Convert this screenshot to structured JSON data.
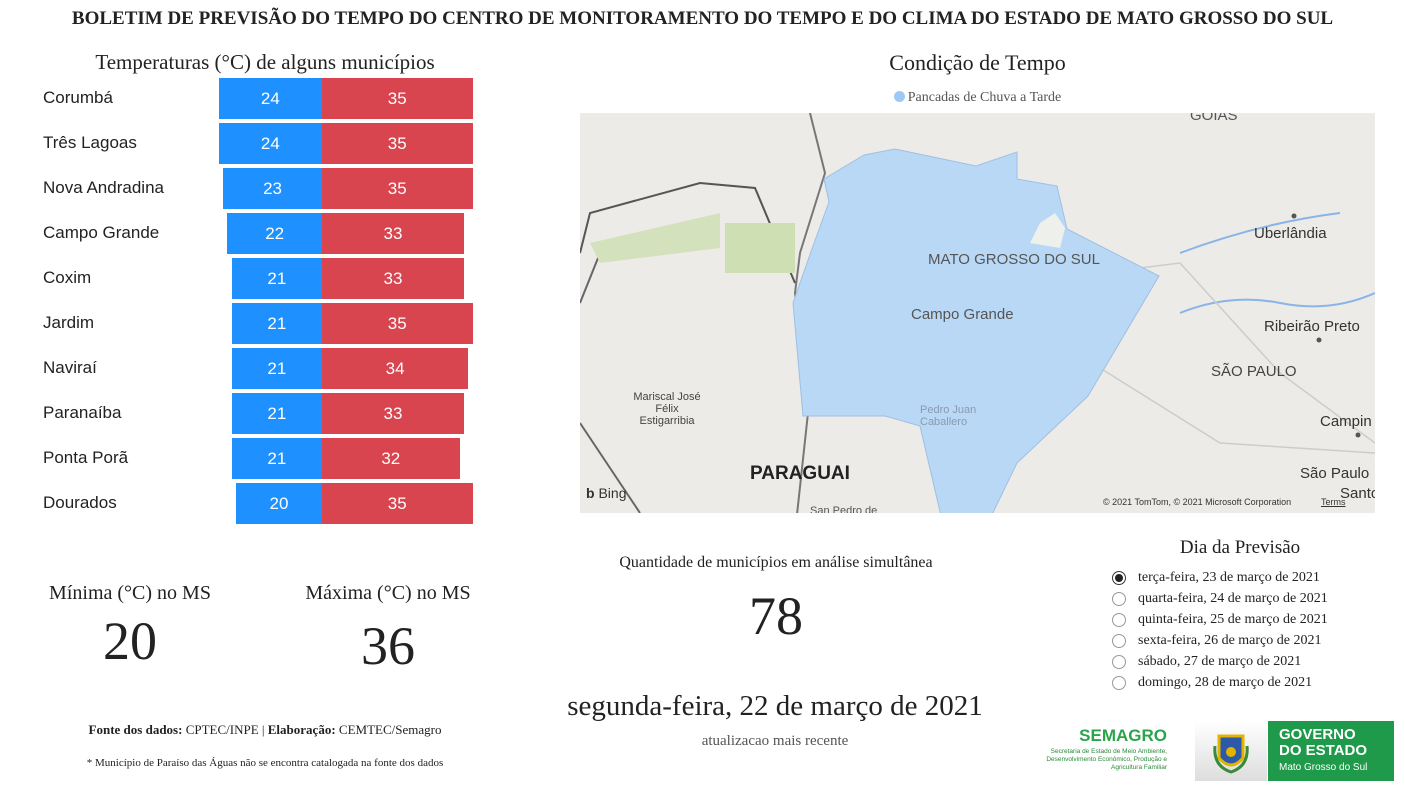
{
  "header": {
    "title": "BOLETIM DE PREVISÃO DO TEMPO DO CENTRO DE MONITORAMENTO DO TEMPO E DO CLIMA DO ESTADO DE MATO GROSSO DO SUL"
  },
  "temperatures": {
    "title": "Temperaturas (°C) de alguns municípios",
    "colors": {
      "min": "#1e90ff",
      "max": "#d9454f"
    },
    "rows": [
      {
        "city": "Corumbá",
        "min": 24,
        "max": 35
      },
      {
        "city": "Três Lagoas",
        "min": 24,
        "max": 35
      },
      {
        "city": "Nova Andradina",
        "min": 23,
        "max": 35
      },
      {
        "city": "Campo Grande",
        "min": 22,
        "max": 33
      },
      {
        "city": "Coxim",
        "min": 21,
        "max": 33
      },
      {
        "city": "Jardim",
        "min": 21,
        "max": 35
      },
      {
        "city": "Naviraí",
        "min": 21,
        "max": 34
      },
      {
        "city": "Paranaíba",
        "min": 21,
        "max": 33
      },
      {
        "city": "Ponta Porã",
        "min": 21,
        "max": 32
      },
      {
        "city": "Dourados",
        "min": 20,
        "max": 35
      }
    ]
  },
  "kpis": {
    "min_label": "Mínima (°C) no MS",
    "min_value": "20",
    "max_label": "Máxima (°C) no MS",
    "max_value": "36",
    "count_label": "Quantidade de municípios em análise simultânea",
    "count_value": "78"
  },
  "condition": {
    "title": "Condição de Tempo",
    "legend": "Pancadas de Chuva a Tarde",
    "legend_color": "#9fc9f5",
    "map_labels": {
      "goias": "GOIÁS",
      "ms": "MATO GROSSO DO SUL",
      "campo_grande": "Campo Grande",
      "uberlandia": "Uberlândia",
      "ribeirao": "Ribeirão Preto",
      "sp": "SÃO PAULO",
      "campinas": "Campin",
      "sao_paulo": "São Paulo",
      "santos": "Santo",
      "mariscal": "Mariscal José Félix Estigarribia",
      "pedro": "Pedro Juan Caballero",
      "paraguai": "PARAGUAI",
      "san_pedro": "San Pedro de",
      "bing": "Bing",
      "copyright": "© 2021 TomTom, © 2021 Microsoft Corporation",
      "terms": "Terms"
    }
  },
  "forecast": {
    "title": "Dia da Previsão",
    "options": [
      {
        "label": "terça-feira, 23 de março de 2021",
        "selected": true
      },
      {
        "label": "quarta-feira, 24 de março de 2021",
        "selected": false
      },
      {
        "label": "quinta-feira, 25 de março de 2021",
        "selected": false
      },
      {
        "label": "sexta-feira, 26 de março de 2021",
        "selected": false
      },
      {
        "label": "sábado, 27 de março de 2021",
        "selected": false
      },
      {
        "label": "domingo, 28 de março de 2021",
        "selected": false
      }
    ]
  },
  "update": {
    "date": "segunda-feira, 22 de março de 2021",
    "label": "atualizacao mais recente"
  },
  "footer": {
    "source_label": "Fonte dos dados:",
    "source": " CPTEC/INPE | ",
    "elab_label": "Elaboração:",
    "elab": " CEMTEC/Semagro",
    "note": "* Município de Paraíso das Águas não se encontra catalogada na fonte dos dados"
  },
  "logos": {
    "semagro": "SEMAGRO",
    "semagro_sub": "Secretaria de Estado de Meio Ambiente, Desenvolvimento Econômico, Produção e Agricultura Familiar",
    "gov1": "GOVERNO",
    "gov2": "DO ESTADO",
    "gov3": "Mato Grosso do Sul"
  }
}
